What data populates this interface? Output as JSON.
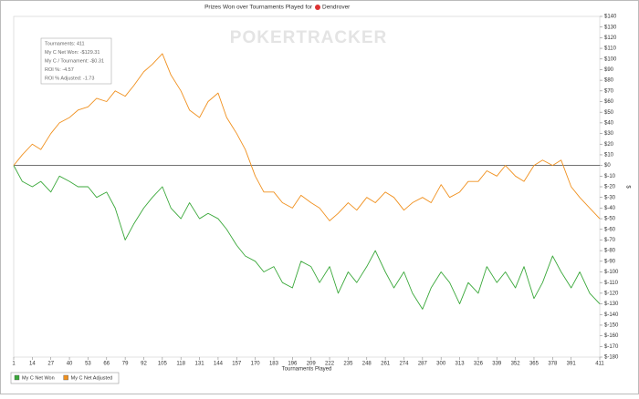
{
  "chart_data": {
    "type": "line",
    "title": "Prizes Won over Tournaments Played for",
    "player": "Dendrover",
    "watermark": "POKERTRACKER",
    "x_label": "Tournaments Played",
    "y_label": "$",
    "annotations": [
      "Tournaments: 411",
      "My C Net Won: -$129.31",
      "My C / Tournament: -$0.31",
      "ROI %: -4.57",
      "ROI % Adjusted: -1.73"
    ],
    "legend": "lower left",
    "reference_line": 0,
    "xlim": [
      1,
      411
    ],
    "ylim": [
      -180,
      140
    ],
    "xticks": [
      1,
      14,
      27,
      40,
      53,
      66,
      79,
      92,
      105,
      118,
      131,
      144,
      157,
      170,
      183,
      196,
      209,
      222,
      235,
      248,
      261,
      274,
      287,
      300,
      313,
      326,
      339,
      352,
      365,
      378,
      391,
      411
    ],
    "yticks": [
      {
        "value": 140,
        "label": "$140"
      },
      {
        "value": 130,
        "label": "$130"
      },
      {
        "value": 120,
        "label": "$120"
      },
      {
        "value": 110,
        "label": "$110"
      },
      {
        "value": 100,
        "label": "$100"
      },
      {
        "value": 90,
        "label": "$90"
      },
      {
        "value": 80,
        "label": "$80"
      },
      {
        "value": 70,
        "label": "$70"
      },
      {
        "value": 60,
        "label": "$60"
      },
      {
        "value": 50,
        "label": "$50"
      },
      {
        "value": 40,
        "label": "$40"
      },
      {
        "value": 30,
        "label": "$30"
      },
      {
        "value": 20,
        "label": "$20"
      },
      {
        "value": 10,
        "label": "$10"
      },
      {
        "value": 0,
        "label": "$0"
      },
      {
        "value": -10,
        "label": "$-10"
      },
      {
        "value": -20,
        "label": "$-20"
      },
      {
        "value": -30,
        "label": "$-30"
      },
      {
        "value": -40,
        "label": "$-40"
      },
      {
        "value": -50,
        "label": "$-50"
      },
      {
        "value": -60,
        "label": "$-60"
      },
      {
        "value": -70,
        "label": "$-70"
      },
      {
        "value": -80,
        "label": "$-80"
      },
      {
        "value": -90,
        "label": "$-90"
      },
      {
        "value": -100,
        "label": "$-100"
      },
      {
        "value": -110,
        "label": "$-110"
      },
      {
        "value": -120,
        "label": "$-120"
      },
      {
        "value": -130,
        "label": "$-130"
      },
      {
        "value": -140,
        "label": "$-140"
      },
      {
        "value": -150,
        "label": "$-150"
      },
      {
        "value": -160,
        "label": "$-160"
      },
      {
        "value": -170,
        "label": "$-170"
      },
      {
        "value": -180,
        "label": "$-180"
      }
    ],
    "x": [
      1,
      7,
      14,
      20,
      27,
      33,
      40,
      46,
      53,
      59,
      66,
      72,
      79,
      85,
      92,
      98,
      105,
      111,
      118,
      124,
      131,
      137,
      144,
      150,
      157,
      163,
      170,
      176,
      183,
      189,
      196,
      202,
      209,
      215,
      222,
      228,
      235,
      241,
      248,
      254,
      261,
      267,
      274,
      280,
      287,
      293,
      300,
      306,
      313,
      319,
      326,
      332,
      339,
      345,
      352,
      358,
      365,
      371,
      378,
      384,
      391,
      397,
      404,
      411
    ],
    "series": [
      {
        "name": "My C Net Won",
        "color": "#3aa83a",
        "values": [
          0,
          -15,
          -20,
          -15,
          -25,
          -10,
          -15,
          -20,
          -20,
          -30,
          -25,
          -40,
          -70,
          -55,
          -40,
          -30,
          -20,
          -40,
          -50,
          -35,
          -50,
          -45,
          -50,
          -60,
          -75,
          -85,
          -90,
          -100,
          -95,
          -110,
          -115,
          -90,
          -95,
          -110,
          -95,
          -120,
          -100,
          -110,
          -95,
          -80,
          -100,
          -115,
          -100,
          -120,
          -135,
          -115,
          -100,
          -110,
          -130,
          -110,
          -120,
          -95,
          -110,
          -100,
          -115,
          -95,
          -125,
          -110,
          -85,
          -100,
          -115,
          -100,
          -120,
          -130
        ]
      },
      {
        "name": "My C Net Adjusted",
        "color": "#f0901e",
        "values": [
          0,
          10,
          20,
          15,
          30,
          40,
          45,
          52,
          55,
          63,
          60,
          70,
          65,
          75,
          88,
          95,
          105,
          85,
          70,
          52,
          45,
          60,
          68,
          45,
          30,
          15,
          -10,
          -25,
          -25,
          -35,
          -40,
          -28,
          -35,
          -40,
          -52,
          -45,
          -35,
          -42,
          -30,
          -35,
          -25,
          -30,
          -42,
          -35,
          -30,
          -35,
          -18,
          -30,
          -25,
          -15,
          -15,
          -5,
          -10,
          0,
          -10,
          -15,
          0,
          5,
          0,
          5,
          -20,
          -30,
          -40,
          -50
        ]
      }
    ]
  }
}
